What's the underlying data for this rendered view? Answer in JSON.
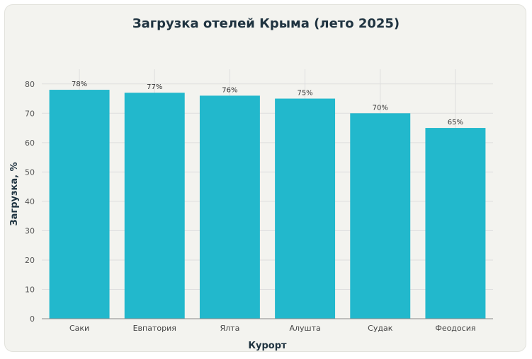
{
  "chart_data": {
    "type": "bar",
    "title": "Загрузка отелей Крыма (лето 2025)",
    "xlabel": "Курорт",
    "ylabel": "Загрузка, %",
    "categories": [
      "Саки",
      "Евпатория",
      "Ялта",
      "Алушта",
      "Судак",
      "Феодосия"
    ],
    "values": [
      78,
      77,
      76,
      75,
      70,
      65
    ],
    "data_labels": [
      "78%",
      "77%",
      "76%",
      "75%",
      "70%",
      "65%"
    ],
    "ylim": [
      0,
      85
    ],
    "yticks": [
      0,
      10,
      20,
      30,
      40,
      50,
      60,
      70,
      80
    ],
    "grid": true,
    "colors": {
      "bar": "#22b8cc",
      "grid": "#dedede",
      "axis": "#888888"
    }
  }
}
